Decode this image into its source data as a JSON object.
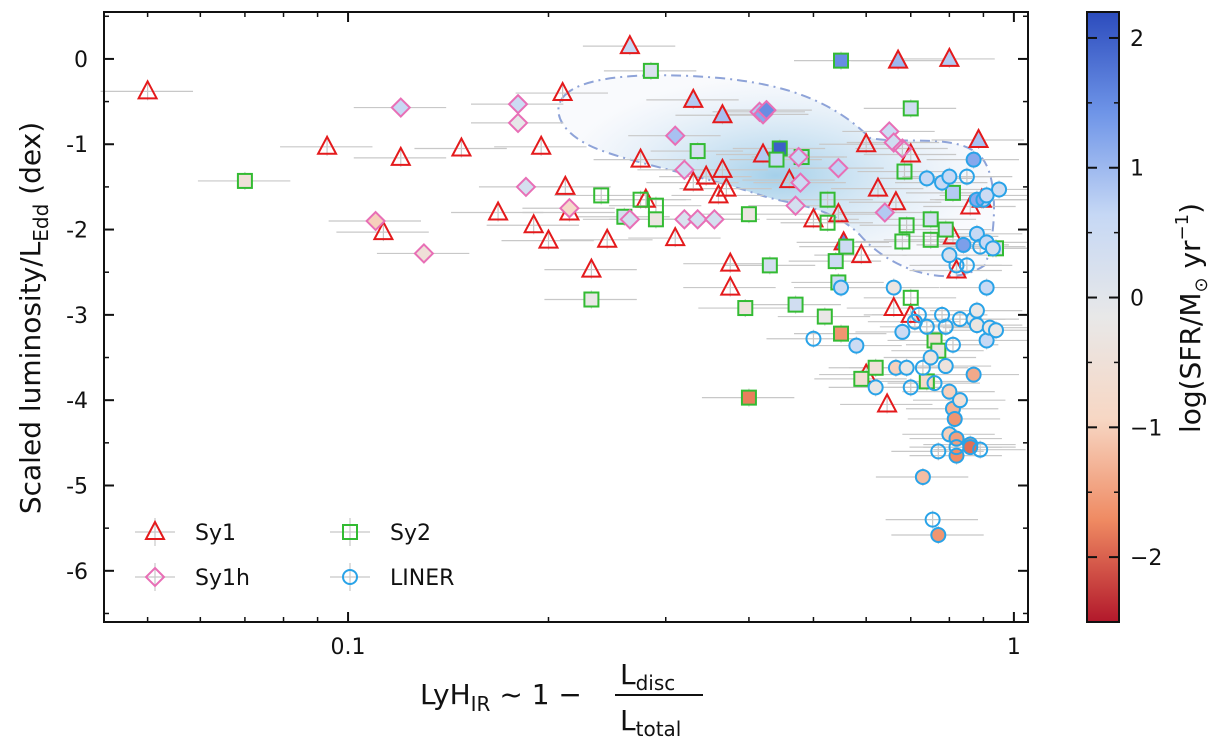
{
  "chart_data": {
    "type": "scatter",
    "xlabel": {
      "prefix": "LyH",
      "sub": "IR",
      "rel": " ~ 1 − ",
      "num": "L",
      "num_sub": "disc",
      "den": "L",
      "den_sub": "total"
    },
    "ylabel": {
      "main": "Scaled luminosity/L",
      "sub": "Edd",
      "tail": " (dex)"
    },
    "colorbar_label": {
      "pre": "log(SFR/M",
      "sub": "⊙",
      "mid": " yr",
      "sup": "−1",
      "post": ")"
    },
    "x_scale": "log",
    "xlim": [
      0.043,
      1.05
    ],
    "ylim": [
      -6.6,
      0.55
    ],
    "x_ticks": [
      {
        "v": 0.1,
        "label": "0.1"
      },
      {
        "v": 1,
        "label": "1"
      }
    ],
    "y_ticks": [
      0,
      -1,
      -2,
      -3,
      -4,
      -5,
      -6
    ],
    "y_tick_labels": [
      "0",
      "-1",
      "-2",
      "-3",
      "-4",
      "-5",
      "-6"
    ],
    "colorbar": {
      "range": [
        -2.5,
        2.2
      ],
      "ticks": [
        2,
        1,
        0,
        -1,
        -2
      ],
      "tick_labels": [
        "2",
        "1",
        "0",
        "−1",
        "−2"
      ],
      "colors": [
        "#b2182b",
        "#ef8a62",
        "#f7d7c4",
        "#e8e8e8",
        "#c6d8f5",
        "#6f95e8",
        "#2c4cbd"
      ]
    },
    "legend": {
      "placement": "lower-left",
      "entries": [
        {
          "label": "Sy1",
          "marker": "triangle",
          "color": "#e41a1c"
        },
        {
          "label": "Sy2",
          "marker": "square",
          "color": "#33bb33"
        },
        {
          "label": "Sy1h",
          "marker": "diamond",
          "color": "#e86fb6"
        },
        {
          "label": "LINER",
          "marker": "circle",
          "color": "#29a3e8"
        }
      ]
    },
    "series": [
      {
        "name": "Sy1",
        "marker": "triangle",
        "edge": "#e41a1c",
        "points": [
          {
            "x": 0.05,
            "y": -0.38,
            "c": null
          },
          {
            "x": 0.093,
            "y": -1.03,
            "c": null
          },
          {
            "x": 0.12,
            "y": -1.16,
            "c": null
          },
          {
            "x": 0.148,
            "y": -1.05,
            "c": null
          },
          {
            "x": 0.113,
            "y": -2.03,
            "c": null
          },
          {
            "x": 0.168,
            "y": -1.8,
            "c": null
          },
          {
            "x": 0.21,
            "y": -0.4,
            "c": null
          },
          {
            "x": 0.195,
            "y": -1.03,
            "c": null
          },
          {
            "x": 0.19,
            "y": -1.95,
            "c": null
          },
          {
            "x": 0.2,
            "y": -2.13,
            "c": null
          },
          {
            "x": 0.212,
            "y": -1.5,
            "c": null
          },
          {
            "x": 0.215,
            "y": -1.8,
            "c": null
          },
          {
            "x": 0.232,
            "y": -2.47,
            "c": null
          },
          {
            "x": 0.245,
            "y": -2.12,
            "c": null
          },
          {
            "x": 0.265,
            "y": 0.15,
            "c": 0.6
          },
          {
            "x": 0.275,
            "y": -1.18,
            "c": null
          },
          {
            "x": 0.28,
            "y": -1.65,
            "c": null
          },
          {
            "x": 0.31,
            "y": -2.1,
            "c": null
          },
          {
            "x": 0.33,
            "y": -0.48,
            "c": 0.8
          },
          {
            "x": 0.33,
            "y": -1.45,
            "c": null
          },
          {
            "x": 0.345,
            "y": -1.38,
            "c": null
          },
          {
            "x": 0.36,
            "y": -1.6,
            "c": null
          },
          {
            "x": 0.365,
            "y": -0.66,
            "c": 0.9
          },
          {
            "x": 0.365,
            "y": -1.3,
            "c": null
          },
          {
            "x": 0.37,
            "y": -1.52,
            "c": null
          },
          {
            "x": 0.375,
            "y": -2.4,
            "c": null
          },
          {
            "x": 0.375,
            "y": -2.68,
            "c": null
          },
          {
            "x": 0.42,
            "y": -1.12,
            "c": 0.8
          },
          {
            "x": 0.46,
            "y": -1.42,
            "c": null
          },
          {
            "x": 0.5,
            "y": -1.88,
            "c": null
          },
          {
            "x": 0.545,
            "y": -1.82,
            "c": null
          },
          {
            "x": 0.555,
            "y": -2.15,
            "c": 1.5
          },
          {
            "x": 0.59,
            "y": -2.3,
            "c": null
          },
          {
            "x": 0.6,
            "y": -1.0,
            "c": null
          },
          {
            "x": 0.625,
            "y": -1.52,
            "c": null
          },
          {
            "x": 0.645,
            "y": -4.05,
            "c": null
          },
          {
            "x": 0.66,
            "y": -2.92,
            "c": null
          },
          {
            "x": 0.665,
            "y": -1.68,
            "c": null
          },
          {
            "x": 0.67,
            "y": -0.02,
            "c": 1.0
          },
          {
            "x": 0.7,
            "y": -1.12,
            "c": null
          },
          {
            "x": 0.7,
            "y": -3.0,
            "c": null
          },
          {
            "x": 0.8,
            "y": 0.0,
            "c": 0.8
          },
          {
            "x": 0.81,
            "y": -2.08,
            "c": null
          },
          {
            "x": 0.82,
            "y": -2.48,
            "c": null
          },
          {
            "x": 0.86,
            "y": -1.73,
            "c": null
          },
          {
            "x": 0.885,
            "y": -0.95,
            "c": 0.9
          },
          {
            "x": 0.895,
            "y": -1.65,
            "c": 0.7
          },
          {
            "x": 0.6,
            "y": -3.7,
            "c": null
          }
        ]
      },
      {
        "name": "Sy2",
        "marker": "square",
        "edge": "#33bb33",
        "points": [
          {
            "x": 0.07,
            "y": -1.43,
            "c": -0.5
          },
          {
            "x": 0.232,
            "y": -2.82,
            "c": -0.2
          },
          {
            "x": 0.24,
            "y": -1.6,
            "c": null
          },
          {
            "x": 0.26,
            "y": -1.85,
            "c": 0.3
          },
          {
            "x": 0.275,
            "y": -1.65,
            "c": null
          },
          {
            "x": 0.285,
            "y": -0.14,
            "c": 0.2
          },
          {
            "x": 0.29,
            "y": -1.72,
            "c": null
          },
          {
            "x": 0.29,
            "y": -1.88,
            "c": -0.3
          },
          {
            "x": 0.335,
            "y": -1.08,
            "c": 0.3
          },
          {
            "x": 0.4,
            "y": -1.82,
            "c": -0.3
          },
          {
            "x": 0.4,
            "y": -3.97,
            "c": -1.8
          },
          {
            "x": 0.395,
            "y": -2.92,
            "c": -0.4
          },
          {
            "x": 0.43,
            "y": -2.42,
            "c": 0.3
          },
          {
            "x": 0.445,
            "y": -1.05,
            "c": 2.0
          },
          {
            "x": 0.44,
            "y": -1.18,
            "c": 0.6
          },
          {
            "x": 0.47,
            "y": -2.88,
            "c": 0.4
          },
          {
            "x": 0.48,
            "y": -1.15,
            "c": null
          },
          {
            "x": 0.525,
            "y": -1.65,
            "c": null
          },
          {
            "x": 0.525,
            "y": -1.92,
            "c": null
          },
          {
            "x": 0.52,
            "y": -3.02,
            "c": -0.2
          },
          {
            "x": 0.54,
            "y": -2.37,
            "c": 0.5
          },
          {
            "x": 0.545,
            "y": -2.62,
            "c": 0.5
          },
          {
            "x": 0.55,
            "y": -0.02,
            "c": 1.5
          },
          {
            "x": 0.55,
            "y": -3.22,
            "c": -1.6
          },
          {
            "x": 0.56,
            "y": -2.2,
            "c": 0.5
          },
          {
            "x": 0.59,
            "y": -3.75,
            "c": -0.6
          },
          {
            "x": 0.62,
            "y": -3.62,
            "c": -0.5
          },
          {
            "x": 0.68,
            "y": -2.14,
            "c": null
          },
          {
            "x": 0.685,
            "y": -1.32,
            "c": null
          },
          {
            "x": 0.69,
            "y": -1.95,
            "c": null
          },
          {
            "x": 0.7,
            "y": -0.58,
            "c": 0.4
          },
          {
            "x": 0.7,
            "y": -2.8,
            "c": null
          },
          {
            "x": 0.74,
            "y": -3.78,
            "c": -0.8
          },
          {
            "x": 0.75,
            "y": -1.88,
            "c": 0.3
          },
          {
            "x": 0.75,
            "y": -2.12,
            "c": null
          },
          {
            "x": 0.76,
            "y": -3.3,
            "c": -0.5
          },
          {
            "x": 0.77,
            "y": -3.42,
            "c": -0.3
          },
          {
            "x": 0.79,
            "y": -2.0,
            "c": 0.3
          },
          {
            "x": 0.81,
            "y": -1.57,
            "c": 0.8
          },
          {
            "x": 0.94,
            "y": -2.22,
            "c": 0.3
          }
        ]
      },
      {
        "name": "Sy1h",
        "marker": "diamond",
        "edge": "#e86fb6",
        "points": [
          {
            "x": 0.11,
            "y": -1.9,
            "c": -1.0
          },
          {
            "x": 0.12,
            "y": -0.57,
            "c": 0.6
          },
          {
            "x": 0.13,
            "y": -2.28,
            "c": -0.5
          },
          {
            "x": 0.18,
            "y": -0.53,
            "c": 0.5
          },
          {
            "x": 0.18,
            "y": -0.75,
            "c": -0.1
          },
          {
            "x": 0.185,
            "y": -1.5,
            "c": 0.3
          },
          {
            "x": 0.215,
            "y": -1.75,
            "c": -0.8
          },
          {
            "x": 0.265,
            "y": -1.88,
            "c": 0.3
          },
          {
            "x": 0.31,
            "y": -0.9,
            "c": 0.9
          },
          {
            "x": 0.32,
            "y": -1.3,
            "c": 0.4
          },
          {
            "x": 0.32,
            "y": -1.88,
            "c": 0.2
          },
          {
            "x": 0.335,
            "y": -1.88,
            "c": 0.3
          },
          {
            "x": 0.355,
            "y": -1.88,
            "c": 0.3
          },
          {
            "x": 0.415,
            "y": -0.62,
            "c": 0.8
          },
          {
            "x": 0.42,
            "y": -0.65,
            "c": 1.2
          },
          {
            "x": 0.425,
            "y": -0.6,
            "c": 1.5
          },
          {
            "x": 0.47,
            "y": -1.72,
            "c": 0.3
          },
          {
            "x": 0.475,
            "y": -1.15,
            "c": 0.6
          },
          {
            "x": 0.478,
            "y": -1.45,
            "c": 0.5
          },
          {
            "x": 0.545,
            "y": -1.28,
            "c": 0.7
          },
          {
            "x": 0.65,
            "y": -0.85,
            "c": 0.5
          },
          {
            "x": 0.66,
            "y": -0.98,
            "c": 0.4
          },
          {
            "x": 0.64,
            "y": -1.8,
            "c": 0.8
          },
          {
            "x": 0.68,
            "y": -1.05,
            "c": null
          }
        ]
      },
      {
        "name": "LINER",
        "marker": "circle",
        "edge": "#29a3e8",
        "points": [
          {
            "x": 0.5,
            "y": -3.28,
            "c": null
          },
          {
            "x": 0.55,
            "y": -2.68,
            "c": 0.5
          },
          {
            "x": 0.58,
            "y": -3.36,
            "c": 0.5
          },
          {
            "x": 0.62,
            "y": -3.85,
            "c": -0.2
          },
          {
            "x": 0.66,
            "y": -2.68,
            "c": -0.3
          },
          {
            "x": 0.665,
            "y": -3.62,
            "c": -1.0
          },
          {
            "x": 0.68,
            "y": -3.2,
            "c": 0.5
          },
          {
            "x": 0.69,
            "y": -3.62,
            "c": -0.2
          },
          {
            "x": 0.7,
            "y": -3.85,
            "c": null
          },
          {
            "x": 0.71,
            "y": -3.08,
            "c": null
          },
          {
            "x": 0.72,
            "y": -3.0,
            "c": null
          },
          {
            "x": 0.73,
            "y": -3.62,
            "c": null
          },
          {
            "x": 0.73,
            "y": -4.9,
            "c": -1.2
          },
          {
            "x": 0.74,
            "y": -3.14,
            "c": null
          },
          {
            "x": 0.74,
            "y": -1.4,
            "c": 0.6
          },
          {
            "x": 0.75,
            "y": -3.5,
            "c": -0.3
          },
          {
            "x": 0.755,
            "y": -5.4,
            "c": null
          },
          {
            "x": 0.76,
            "y": -3.8,
            "c": null
          },
          {
            "x": 0.77,
            "y": -4.6,
            "c": null
          },
          {
            "x": 0.77,
            "y": -5.58,
            "c": -1.6
          },
          {
            "x": 0.78,
            "y": -1.45,
            "c": 0.6
          },
          {
            "x": 0.78,
            "y": -3.0,
            "c": null
          },
          {
            "x": 0.79,
            "y": -3.14,
            "c": null
          },
          {
            "x": 0.79,
            "y": -3.6,
            "c": -0.4
          },
          {
            "x": 0.8,
            "y": -3.9,
            "c": -1.0
          },
          {
            "x": 0.8,
            "y": -4.4,
            "c": -1.0
          },
          {
            "x": 0.8,
            "y": -1.38,
            "c": 0.6
          },
          {
            "x": 0.81,
            "y": -3.35,
            "c": null
          },
          {
            "x": 0.81,
            "y": -4.1,
            "c": -1.3
          },
          {
            "x": 0.815,
            "y": -4.22,
            "c": -1.6
          },
          {
            "x": 0.82,
            "y": -4.45,
            "c": -1.5
          },
          {
            "x": 0.82,
            "y": -4.65,
            "c": -1.7
          },
          {
            "x": 0.82,
            "y": -2.42,
            "c": null
          },
          {
            "x": 0.83,
            "y": -3.05,
            "c": null
          },
          {
            "x": 0.83,
            "y": -4.0,
            "c": -0.5
          },
          {
            "x": 0.84,
            "y": -2.18,
            "c": 1.3
          },
          {
            "x": 0.85,
            "y": -2.42,
            "c": null
          },
          {
            "x": 0.85,
            "y": -1.38,
            "c": null
          },
          {
            "x": 0.86,
            "y": -4.52,
            "c": -1.6
          },
          {
            "x": 0.86,
            "y": -4.55,
            "c": -1.9
          },
          {
            "x": 0.87,
            "y": -3.7,
            "c": -1.4
          },
          {
            "x": 0.87,
            "y": -1.18,
            "c": 1.2
          },
          {
            "x": 0.88,
            "y": -2.05,
            "c": 0.6
          },
          {
            "x": 0.87,
            "y": -3.05,
            "c": -0.2
          },
          {
            "x": 0.88,
            "y": -2.95,
            "c": -0.2
          },
          {
            "x": 0.88,
            "y": -3.12,
            "c": -0.3
          },
          {
            "x": 0.88,
            "y": -1.65,
            "c": 1.2
          },
          {
            "x": 0.89,
            "y": -2.2,
            "c": null
          },
          {
            "x": 0.89,
            "y": -4.58,
            "c": null
          },
          {
            "x": 0.9,
            "y": -1.65,
            "c": null
          },
          {
            "x": 0.91,
            "y": -1.6,
            "c": 0.5
          },
          {
            "x": 0.91,
            "y": -2.15,
            "c": 0.6
          },
          {
            "x": 0.91,
            "y": -2.68,
            "c": 0.6
          },
          {
            "x": 0.91,
            "y": -3.3,
            "c": 0.6
          },
          {
            "x": 0.92,
            "y": -3.15,
            "c": -0.3
          },
          {
            "x": 0.93,
            "y": -2.22,
            "c": 0.3
          },
          {
            "x": 0.94,
            "y": -3.18,
            "c": -0.2
          },
          {
            "x": 0.95,
            "y": -1.53,
            "c": 0.4
          },
          {
            "x": 0.8,
            "y": -2.3,
            "c": 0.3
          },
          {
            "x": 0.82,
            "y": -4.55,
            "c": null
          }
        ]
      }
    ]
  }
}
